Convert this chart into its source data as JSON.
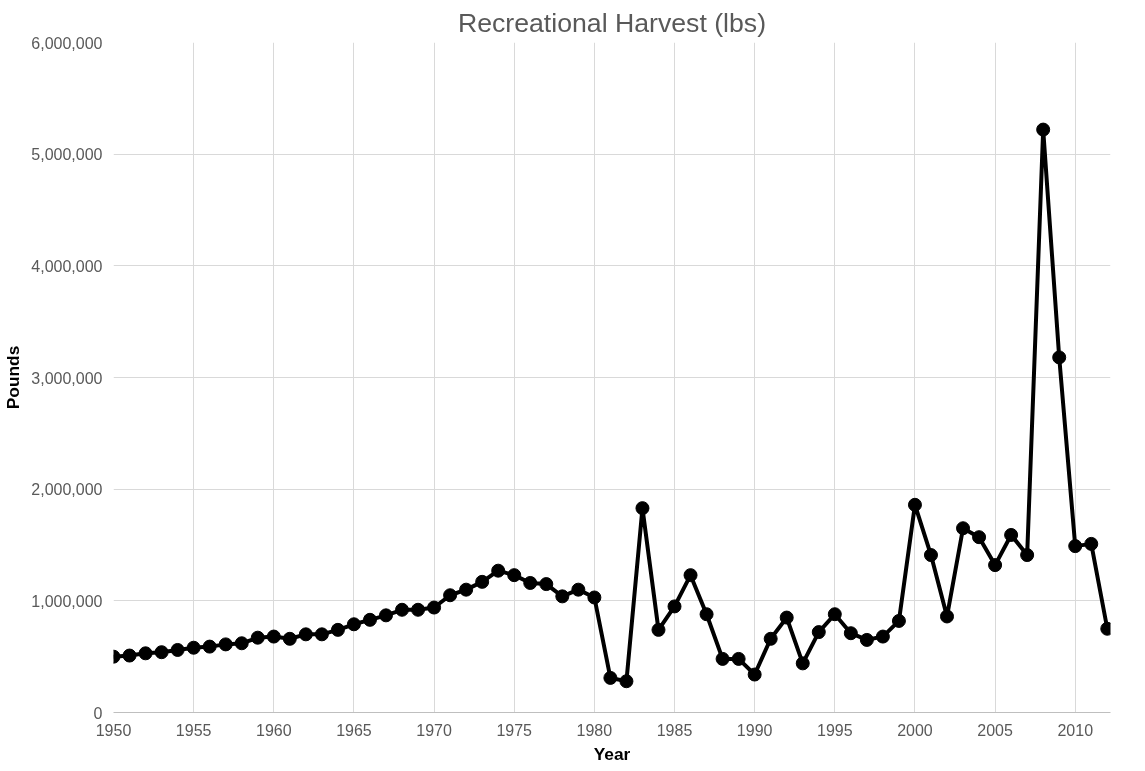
{
  "chart_data": {
    "type": "line",
    "title": "Recreational Harvest (lbs)",
    "xlabel": "Year",
    "ylabel": "Pounds",
    "x": [
      1950,
      1951,
      1952,
      1953,
      1954,
      1955,
      1956,
      1957,
      1958,
      1959,
      1960,
      1961,
      1962,
      1963,
      1964,
      1965,
      1966,
      1967,
      1968,
      1969,
      1970,
      1971,
      1972,
      1973,
      1974,
      1975,
      1976,
      1977,
      1978,
      1979,
      1980,
      1981,
      1982,
      1983,
      1984,
      1985,
      1986,
      1987,
      1988,
      1989,
      1990,
      1991,
      1992,
      1993,
      1994,
      1995,
      1996,
      1997,
      1998,
      1999,
      2000,
      2001,
      2002,
      2003,
      2004,
      2005,
      2006,
      2007,
      2008,
      2009,
      2010,
      2011,
      2012
    ],
    "series": [
      {
        "color": "#000000",
        "values": [
          500000,
          510000,
          530000,
          540000,
          560000,
          580000,
          590000,
          610000,
          620000,
          670000,
          680000,
          660000,
          700000,
          700000,
          740000,
          790000,
          830000,
          870000,
          920000,
          920000,
          940000,
          1050000,
          1100000,
          1170000,
          1270000,
          1230000,
          1160000,
          1150000,
          1040000,
          1100000,
          1030000,
          310000,
          280000,
          1830000,
          740000,
          950000,
          1230000,
          880000,
          480000,
          480000,
          340000,
          660000,
          850000,
          440000,
          720000,
          880000,
          710000,
          650000,
          680000,
          820000,
          1860000,
          1410000,
          860000,
          1650000,
          1570000,
          1320000,
          1590000,
          1410000,
          5220000,
          3180000,
          1490000,
          1510000,
          750000
        ]
      }
    ],
    "xlim": [
      1950,
      2012.2
    ],
    "xticks": [
      1950,
      1955,
      1960,
      1965,
      1970,
      1975,
      1980,
      1985,
      1990,
      1995,
      2000,
      2005,
      2010
    ],
    "ylim": [
      0,
      6000000
    ],
    "yticks": [
      {
        "value": 0,
        "label": "0"
      },
      {
        "value": 1000000,
        "label": "1,000,000"
      },
      {
        "value": 2000000,
        "label": "2,000,000"
      },
      {
        "value": 3000000,
        "label": "3,000,000"
      },
      {
        "value": 4000000,
        "label": "4,000,000"
      },
      {
        "value": 5000000,
        "label": "5,000,000"
      },
      {
        "value": 6000000,
        "label": "6,000,000"
      }
    ],
    "grid": true,
    "marker": "circle",
    "line_style": "solid"
  }
}
